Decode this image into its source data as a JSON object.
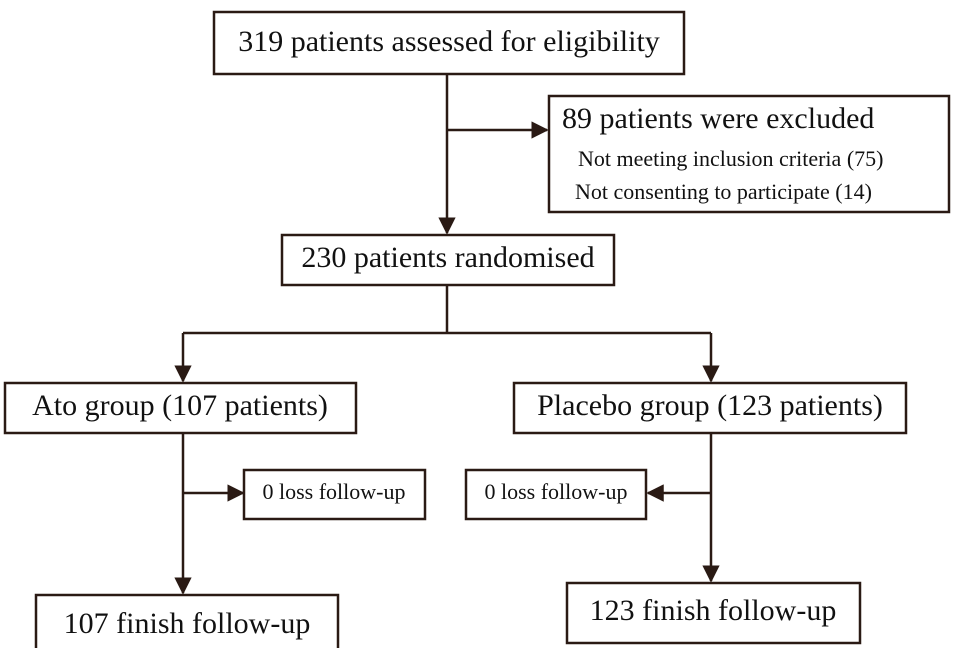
{
  "nodes": [
    {
      "label": "319 patients assessed for eligibility"
    },
    {
      "label": "89 patients were excluded",
      "details": [
        "Not meeting inclusion criteria (75)",
        "Not consenting to participate (14)"
      ]
    },
    {
      "label": "230 patients randomised"
    },
    {
      "label": "Ato group (107 patients)"
    },
    {
      "label": "Placebo group (123 patients)"
    },
    {
      "label": "0 loss follow-up"
    },
    {
      "label": "0 loss follow-up"
    },
    {
      "label": "107 finish follow-up"
    },
    {
      "label": "123 finish follow-up"
    }
  ]
}
